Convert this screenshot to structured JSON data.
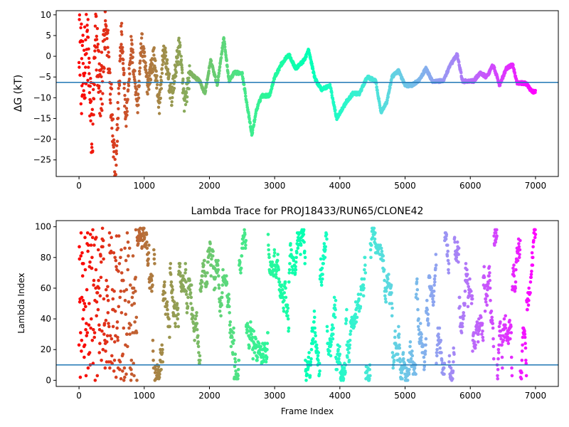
{
  "chart_data": [
    {
      "type": "scatter",
      "title": "",
      "xlabel": "",
      "ylabel": "ΔG (kT)",
      "xlim": [
        -350,
        7350
      ],
      "ylim": [
        -29,
        11
      ],
      "xticks": [
        0,
        1000,
        2000,
        3000,
        4000,
        5000,
        6000,
        7000
      ],
      "yticks": [
        10,
        5,
        0,
        -5,
        -10,
        -15,
        -20,
        -25
      ],
      "hline": -6.3,
      "hline_color": "#1f77b4",
      "colormap": "rainbow",
      "color_by": "frame index (red → purple)",
      "grid": false,
      "legend": "none",
      "trace_keypoints": [
        {
          "x": 0,
          "y": 10
        },
        {
          "x": 50,
          "y": -8
        },
        {
          "x": 120,
          "y": 6
        },
        {
          "x": 200,
          "y": -20
        },
        {
          "x": 260,
          "y": 5
        },
        {
          "x": 330,
          "y": -10
        },
        {
          "x": 420,
          "y": 8
        },
        {
          "x": 500,
          "y": -12
        },
        {
          "x": 560,
          "y": -28
        },
        {
          "x": 650,
          "y": 6
        },
        {
          "x": 720,
          "y": -16
        },
        {
          "x": 800,
          "y": 3
        },
        {
          "x": 900,
          "y": -12
        },
        {
          "x": 960,
          "y": 4
        },
        {
          "x": 1050,
          "y": -7
        },
        {
          "x": 1150,
          "y": 0
        },
        {
          "x": 1230,
          "y": -12
        },
        {
          "x": 1300,
          "y": 2
        },
        {
          "x": 1420,
          "y": -10
        },
        {
          "x": 1540,
          "y": 3
        },
        {
          "x": 1620,
          "y": -12
        },
        {
          "x": 1700,
          "y": -4
        },
        {
          "x": 1850,
          "y": -6
        },
        {
          "x": 1930,
          "y": -9
        },
        {
          "x": 2020,
          "y": -1
        },
        {
          "x": 2120,
          "y": -7
        },
        {
          "x": 2220,
          "y": 4.5
        },
        {
          "x": 2300,
          "y": -6
        },
        {
          "x": 2380,
          "y": -4
        },
        {
          "x": 2500,
          "y": -4
        },
        {
          "x": 2580,
          "y": -12
        },
        {
          "x": 2650,
          "y": -19
        },
        {
          "x": 2720,
          "y": -13
        },
        {
          "x": 2800,
          "y": -9.5
        },
        {
          "x": 2920,
          "y": -9.5
        },
        {
          "x": 3000,
          "y": -5
        },
        {
          "x": 3100,
          "y": -2
        },
        {
          "x": 3220,
          "y": 0.5
        },
        {
          "x": 3320,
          "y": -3
        },
        {
          "x": 3450,
          "y": -1
        },
        {
          "x": 3520,
          "y": 1.5
        },
        {
          "x": 3620,
          "y": -5.5
        },
        {
          "x": 3720,
          "y": -8
        },
        {
          "x": 3850,
          "y": -7
        },
        {
          "x": 3950,
          "y": -15
        },
        {
          "x": 4100,
          "y": -11
        },
        {
          "x": 4200,
          "y": -9
        },
        {
          "x": 4300,
          "y": -9
        },
        {
          "x": 4420,
          "y": -5
        },
        {
          "x": 4550,
          "y": -6
        },
        {
          "x": 4630,
          "y": -13.5
        },
        {
          "x": 4720,
          "y": -11
        },
        {
          "x": 4800,
          "y": -5
        },
        {
          "x": 4900,
          "y": -3.5
        },
        {
          "x": 5000,
          "y": -7
        },
        {
          "x": 5100,
          "y": -7
        },
        {
          "x": 5200,
          "y": -6
        },
        {
          "x": 5320,
          "y": -3
        },
        {
          "x": 5420,
          "y": -6
        },
        {
          "x": 5580,
          "y": -6
        },
        {
          "x": 5700,
          "y": -2
        },
        {
          "x": 5800,
          "y": 0.5
        },
        {
          "x": 5880,
          "y": -6
        },
        {
          "x": 6050,
          "y": -6
        },
        {
          "x": 6150,
          "y": -4
        },
        {
          "x": 6250,
          "y": -5
        },
        {
          "x": 6350,
          "y": -2
        },
        {
          "x": 6450,
          "y": -7
        },
        {
          "x": 6550,
          "y": -3
        },
        {
          "x": 6650,
          "y": -2
        },
        {
          "x": 6720,
          "y": -6.5
        },
        {
          "x": 6850,
          "y": -6.5
        },
        {
          "x": 6950,
          "y": -8.5
        },
        {
          "x": 7000,
          "y": -8.5
        }
      ]
    },
    {
      "type": "scatter",
      "title": "Lambda Trace for PROJ18433/RUN65/CLONE42",
      "xlabel": "Frame Index",
      "ylabel": "Lambda Index",
      "xlim": [
        -350,
        7350
      ],
      "ylim": [
        -4,
        104
      ],
      "xticks": [
        0,
        1000,
        2000,
        3000,
        4000,
        5000,
        6000,
        7000
      ],
      "yticks": [
        0,
        20,
        40,
        60,
        80,
        100
      ],
      "hline": 10,
      "hline_color": "#1f77b4",
      "colormap": "rainbow",
      "color_by": "frame index (red → purple)",
      "value_range": [
        0,
        99
      ],
      "frame_range": [
        0,
        7000
      ],
      "grid": false,
      "legend": "none"
    }
  ]
}
